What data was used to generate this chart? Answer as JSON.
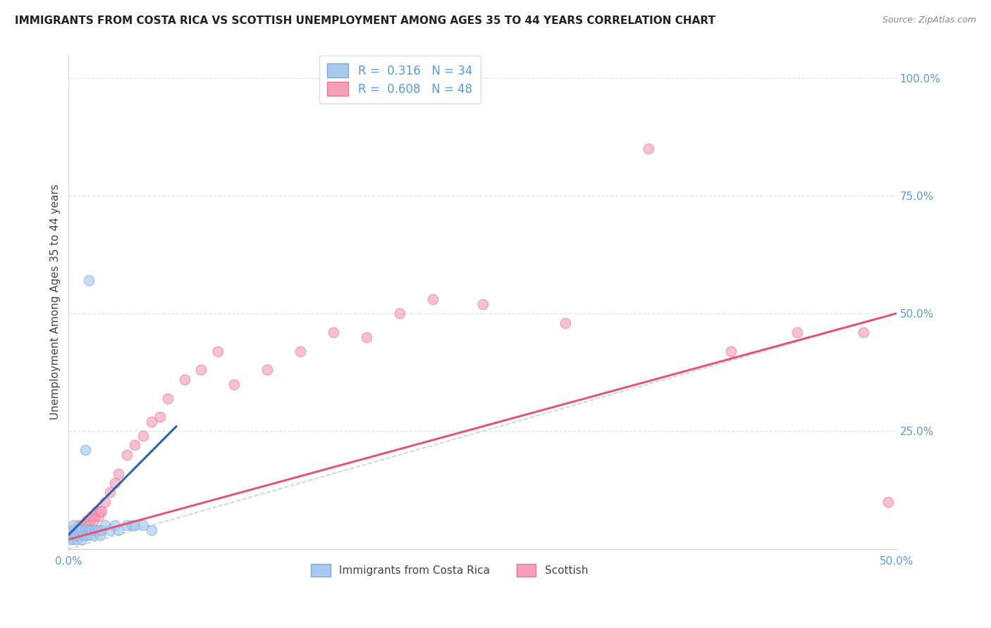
{
  "title": "IMMIGRANTS FROM COSTA RICA VS SCOTTISH UNEMPLOYMENT AMONG AGES 35 TO 44 YEARS CORRELATION CHART",
  "source": "Source: ZipAtlas.com",
  "ylabel": "Unemployment Among Ages 35 to 44 years",
  "xlim": [
    0.0,
    0.5
  ],
  "ylim": [
    0.0,
    1.05
  ],
  "xtick_positions": [
    0.0,
    0.1,
    0.2,
    0.3,
    0.4,
    0.5
  ],
  "xtick_labels": [
    "0.0%",
    "",
    "",
    "",
    "",
    "50.0%"
  ],
  "yticks_right": [
    0.0,
    0.25,
    0.5,
    0.75,
    1.0
  ],
  "ytick_labels_right": [
    "",
    "25.0%",
    "50.0%",
    "75.0%",
    "100.0%"
  ],
  "legend_blue_label": "R =  0.316   N = 34",
  "legend_pink_label": "R =  0.608   N = 48",
  "legend_label_blue": "Immigrants from Costa Rica",
  "legend_label_pink": "Scottish",
  "blue_color": "#a8c8f0",
  "pink_color": "#f4a0b8",
  "blue_edge_color": "#7aaad8",
  "pink_edge_color": "#e87898",
  "blue_line_color": "#3060b0",
  "pink_line_color": "#e05878",
  "ref_line_color": "#c8d0dc",
  "axis_tick_color": "#5b9bd5",
  "grid_color": "#dde4ee",
  "background_color": "#ffffff",
  "blue_scatter_x": [
    0.001,
    0.002,
    0.002,
    0.003,
    0.003,
    0.004,
    0.005,
    0.005,
    0.006,
    0.007,
    0.008,
    0.008,
    0.009,
    0.01,
    0.011,
    0.012,
    0.013,
    0.014,
    0.015,
    0.016,
    0.018,
    0.019,
    0.02,
    0.022,
    0.025,
    0.028,
    0.03,
    0.035,
    0.038,
    0.04,
    0.045,
    0.05,
    0.012,
    0.01
  ],
  "blue_scatter_y": [
    0.02,
    0.03,
    0.04,
    0.02,
    0.05,
    0.03,
    0.02,
    0.03,
    0.04,
    0.03,
    0.02,
    0.04,
    0.03,
    0.04,
    0.03,
    0.04,
    0.03,
    0.04,
    0.03,
    0.04,
    0.04,
    0.03,
    0.04,
    0.05,
    0.04,
    0.05,
    0.04,
    0.05,
    0.05,
    0.05,
    0.05,
    0.04,
    0.57,
    0.21
  ],
  "pink_scatter_x": [
    0.001,
    0.002,
    0.003,
    0.004,
    0.005,
    0.005,
    0.006,
    0.007,
    0.008,
    0.009,
    0.01,
    0.011,
    0.012,
    0.013,
    0.014,
    0.015,
    0.016,
    0.017,
    0.018,
    0.019,
    0.02,
    0.022,
    0.025,
    0.028,
    0.03,
    0.035,
    0.04,
    0.045,
    0.05,
    0.055,
    0.06,
    0.07,
    0.08,
    0.09,
    0.1,
    0.12,
    0.14,
    0.16,
    0.18,
    0.2,
    0.22,
    0.25,
    0.3,
    0.35,
    0.4,
    0.44,
    0.48,
    0.495
  ],
  "pink_scatter_y": [
    0.03,
    0.04,
    0.03,
    0.04,
    0.03,
    0.04,
    0.05,
    0.04,
    0.05,
    0.04,
    0.05,
    0.06,
    0.05,
    0.06,
    0.07,
    0.06,
    0.07,
    0.08,
    0.07,
    0.08,
    0.08,
    0.1,
    0.12,
    0.14,
    0.16,
    0.2,
    0.22,
    0.24,
    0.27,
    0.28,
    0.32,
    0.36,
    0.38,
    0.42,
    0.35,
    0.38,
    0.42,
    0.46,
    0.45,
    0.5,
    0.53,
    0.52,
    0.48,
    0.85,
    0.42,
    0.46,
    0.46,
    0.1
  ],
  "blue_trend_x": [
    0.0,
    0.065
  ],
  "blue_trend_y": [
    0.03,
    0.26
  ],
  "pink_trend_x": [
    0.0,
    0.5
  ],
  "pink_trend_y": [
    0.02,
    0.5
  ],
  "ref_line_x": [
    0.0,
    1.05
  ],
  "ref_line_y": [
    0.0,
    1.05
  ]
}
